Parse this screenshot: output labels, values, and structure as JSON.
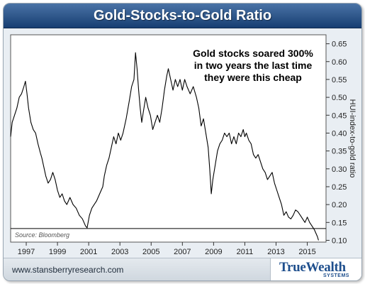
{
  "chart_data": {
    "type": "line",
    "title": "Gold-Stocks-to-Gold Ratio",
    "ylabel": "HUI-index-to-gold ratio",
    "annotation": [
      "Gold stocks soared 300%",
      "in two years the last time",
      "they were this cheap"
    ],
    "source": "Source: Bloomberg",
    "xlim": [
      1996.0,
      2016.2
    ],
    "ylim": [
      0.095,
      0.675
    ],
    "x_ticks": [
      {
        "x": 1997,
        "label": "1997"
      },
      {
        "x": 1999,
        "label": "1999"
      },
      {
        "x": 2001,
        "label": "2001"
      },
      {
        "x": 2003,
        "label": "2003"
      },
      {
        "x": 2005,
        "label": "2005"
      },
      {
        "x": 2007,
        "label": "2007"
      },
      {
        "x": 2009,
        "label": "2009"
      },
      {
        "x": 2011,
        "label": "2011"
      },
      {
        "x": 2013,
        "label": "2013"
      },
      {
        "x": 2015,
        "label": "2015"
      }
    ],
    "y_ticks": [
      {
        "y": 0.1,
        "label": "0.10"
      },
      {
        "y": 0.15,
        "label": "0.15"
      },
      {
        "y": 0.2,
        "label": "0.20"
      },
      {
        "y": 0.25,
        "label": "0.25"
      },
      {
        "y": 0.3,
        "label": "0.30"
      },
      {
        "y": 0.35,
        "label": "0.35"
      },
      {
        "y": 0.4,
        "label": "0.40"
      },
      {
        "y": 0.45,
        "label": "0.45"
      },
      {
        "y": 0.5,
        "label": "0.50"
      },
      {
        "y": 0.55,
        "label": "0.55"
      },
      {
        "y": 0.6,
        "label": "0.60"
      },
      {
        "y": 0.65,
        "label": "0.65"
      }
    ],
    "reference_line": {
      "y": 0.133
    },
    "series": [
      {
        "line_color": "#000000",
        "points": [
          [
            1996.0,
            0.39
          ],
          [
            1996.1,
            0.43
          ],
          [
            1996.25,
            0.45
          ],
          [
            1996.4,
            0.47
          ],
          [
            1996.55,
            0.5
          ],
          [
            1996.7,
            0.51
          ],
          [
            1996.85,
            0.53
          ],
          [
            1996.95,
            0.545
          ],
          [
            1997.05,
            0.51
          ],
          [
            1997.15,
            0.47
          ],
          [
            1997.3,
            0.43
          ],
          [
            1997.45,
            0.41
          ],
          [
            1997.6,
            0.4
          ],
          [
            1997.75,
            0.37
          ],
          [
            1997.9,
            0.345
          ],
          [
            1998.0,
            0.33
          ],
          [
            1998.1,
            0.31
          ],
          [
            1998.25,
            0.28
          ],
          [
            1998.4,
            0.26
          ],
          [
            1998.55,
            0.27
          ],
          [
            1998.7,
            0.29
          ],
          [
            1998.85,
            0.27
          ],
          [
            1999.0,
            0.24
          ],
          [
            1999.15,
            0.22
          ],
          [
            1999.3,
            0.23
          ],
          [
            1999.45,
            0.21
          ],
          [
            1999.6,
            0.2
          ],
          [
            1999.8,
            0.22
          ],
          [
            2000.0,
            0.2
          ],
          [
            2000.2,
            0.19
          ],
          [
            2000.4,
            0.17
          ],
          [
            2000.6,
            0.16
          ],
          [
            2000.8,
            0.14
          ],
          [
            2000.9,
            0.135
          ],
          [
            2001.05,
            0.17
          ],
          [
            2001.2,
            0.19
          ],
          [
            2001.35,
            0.2
          ],
          [
            2001.5,
            0.21
          ],
          [
            2001.7,
            0.23
          ],
          [
            2001.9,
            0.25
          ],
          [
            2002.0,
            0.28
          ],
          [
            2002.15,
            0.31
          ],
          [
            2002.3,
            0.33
          ],
          [
            2002.45,
            0.36
          ],
          [
            2002.6,
            0.39
          ],
          [
            2002.75,
            0.37
          ],
          [
            2002.9,
            0.4
          ],
          [
            2003.05,
            0.38
          ],
          [
            2003.2,
            0.4
          ],
          [
            2003.4,
            0.44
          ],
          [
            2003.6,
            0.49
          ],
          [
            2003.75,
            0.53
          ],
          [
            2003.9,
            0.55
          ],
          [
            2004.0,
            0.625
          ],
          [
            2004.1,
            0.58
          ],
          [
            2004.2,
            0.52
          ],
          [
            2004.3,
            0.47
          ],
          [
            2004.4,
            0.43
          ],
          [
            2004.5,
            0.46
          ],
          [
            2004.65,
            0.5
          ],
          [
            2004.8,
            0.47
          ],
          [
            2004.95,
            0.45
          ],
          [
            2005.1,
            0.41
          ],
          [
            2005.25,
            0.43
          ],
          [
            2005.4,
            0.45
          ],
          [
            2005.55,
            0.43
          ],
          [
            2005.7,
            0.47
          ],
          [
            2005.85,
            0.52
          ],
          [
            2006.0,
            0.56
          ],
          [
            2006.1,
            0.58
          ],
          [
            2006.25,
            0.55
          ],
          [
            2006.4,
            0.52
          ],
          [
            2006.55,
            0.55
          ],
          [
            2006.7,
            0.53
          ],
          [
            2006.85,
            0.55
          ],
          [
            2007.0,
            0.52
          ],
          [
            2007.15,
            0.55
          ],
          [
            2007.3,
            0.53
          ],
          [
            2007.5,
            0.51
          ],
          [
            2007.7,
            0.53
          ],
          [
            2007.9,
            0.5
          ],
          [
            2008.05,
            0.47
          ],
          [
            2008.2,
            0.42
          ],
          [
            2008.35,
            0.44
          ],
          [
            2008.5,
            0.4
          ],
          [
            2008.65,
            0.36
          ],
          [
            2008.75,
            0.3
          ],
          [
            2008.85,
            0.23
          ],
          [
            2008.95,
            0.27
          ],
          [
            2009.1,
            0.31
          ],
          [
            2009.25,
            0.35
          ],
          [
            2009.4,
            0.37
          ],
          [
            2009.55,
            0.38
          ],
          [
            2009.7,
            0.4
          ],
          [
            2009.85,
            0.39
          ],
          [
            2010.0,
            0.4
          ],
          [
            2010.15,
            0.37
          ],
          [
            2010.3,
            0.39
          ],
          [
            2010.45,
            0.37
          ],
          [
            2010.6,
            0.4
          ],
          [
            2010.75,
            0.39
          ],
          [
            2010.9,
            0.41
          ],
          [
            2011.0,
            0.39
          ],
          [
            2011.1,
            0.4
          ],
          [
            2011.25,
            0.38
          ],
          [
            2011.4,
            0.37
          ],
          [
            2011.55,
            0.34
          ],
          [
            2011.7,
            0.33
          ],
          [
            2011.85,
            0.34
          ],
          [
            2012.0,
            0.32
          ],
          [
            2012.15,
            0.3
          ],
          [
            2012.3,
            0.29
          ],
          [
            2012.45,
            0.27
          ],
          [
            2012.6,
            0.28
          ],
          [
            2012.75,
            0.29
          ],
          [
            2012.9,
            0.26
          ],
          [
            2013.05,
            0.24
          ],
          [
            2013.2,
            0.22
          ],
          [
            2013.35,
            0.2
          ],
          [
            2013.5,
            0.17
          ],
          [
            2013.65,
            0.18
          ],
          [
            2013.8,
            0.165
          ],
          [
            2013.95,
            0.16
          ],
          [
            2014.1,
            0.17
          ],
          [
            2014.25,
            0.185
          ],
          [
            2014.4,
            0.18
          ],
          [
            2014.55,
            0.17
          ],
          [
            2014.7,
            0.16
          ],
          [
            2014.85,
            0.15
          ],
          [
            2015.0,
            0.165
          ],
          [
            2015.15,
            0.15
          ],
          [
            2015.3,
            0.14
          ],
          [
            2015.45,
            0.13
          ],
          [
            2015.55,
            0.12
          ],
          [
            2015.65,
            0.11
          ],
          [
            2015.72,
            0.1
          ]
        ]
      }
    ]
  },
  "footer": {
    "website": "www.stansberryresearch.com",
    "logo_main": "TrueWealth",
    "logo_sub": "SYSTEMS"
  },
  "colors": {
    "header": "#1f4a80",
    "brand": "#1f4f8d",
    "line": "#000000"
  }
}
